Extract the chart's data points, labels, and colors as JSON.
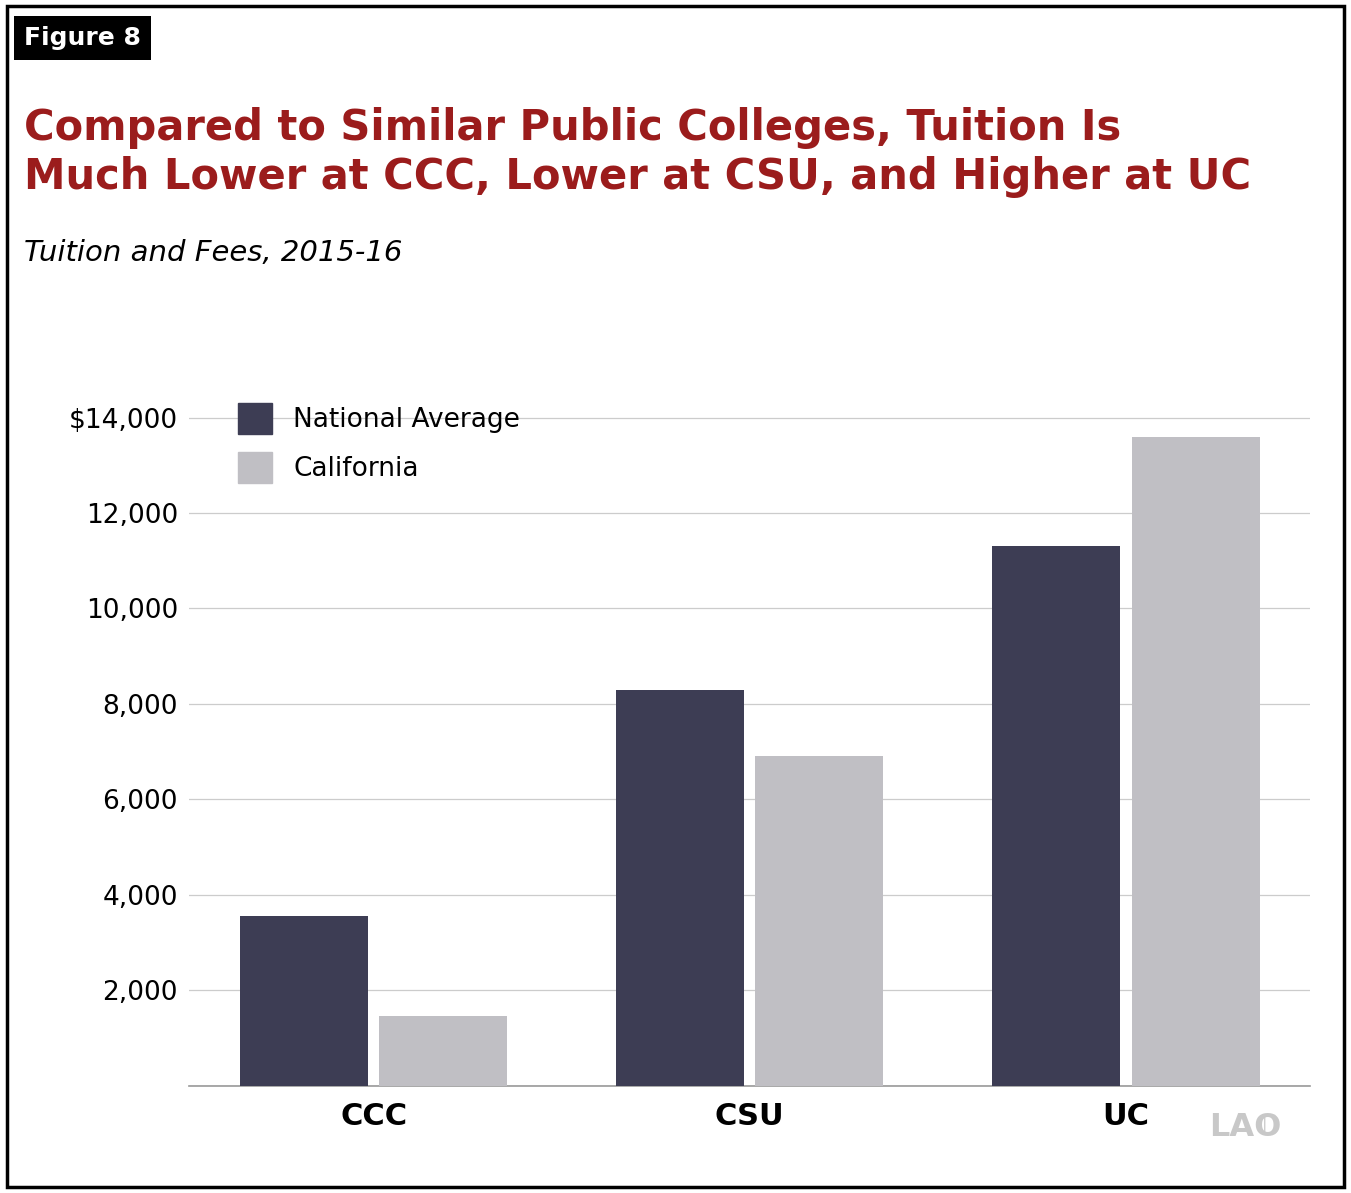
{
  "figure_label": "Figure 8",
  "title_line1": "Compared to Similar Public Colleges, Tuition Is",
  "title_line2": "Much Lower at CCC, Lower at CSU, and Higher at UC",
  "subtitle": "Tuition and Fees, 2015-16",
  "categories": [
    "CCC",
    "CSU",
    "UC"
  ],
  "national_average": [
    3560,
    8300,
    11300
  ],
  "california": [
    1460,
    6900,
    13600
  ],
  "bar_color_national": "#3d3d54",
  "bar_color_california": "#c0bfc4",
  "ylim": [
    0,
    15000
  ],
  "yticks": [
    0,
    2000,
    4000,
    6000,
    8000,
    10000,
    12000,
    14000
  ],
  "legend_national": "National Average",
  "legend_california": "California",
  "title_color": "#9b1c1c",
  "subtitle_color": "#000000",
  "background_color": "#ffffff",
  "border_color": "#000000",
  "lao_watermark": "LAO",
  "figure_label_bg": "#000000",
  "figure_label_color": "#ffffff"
}
